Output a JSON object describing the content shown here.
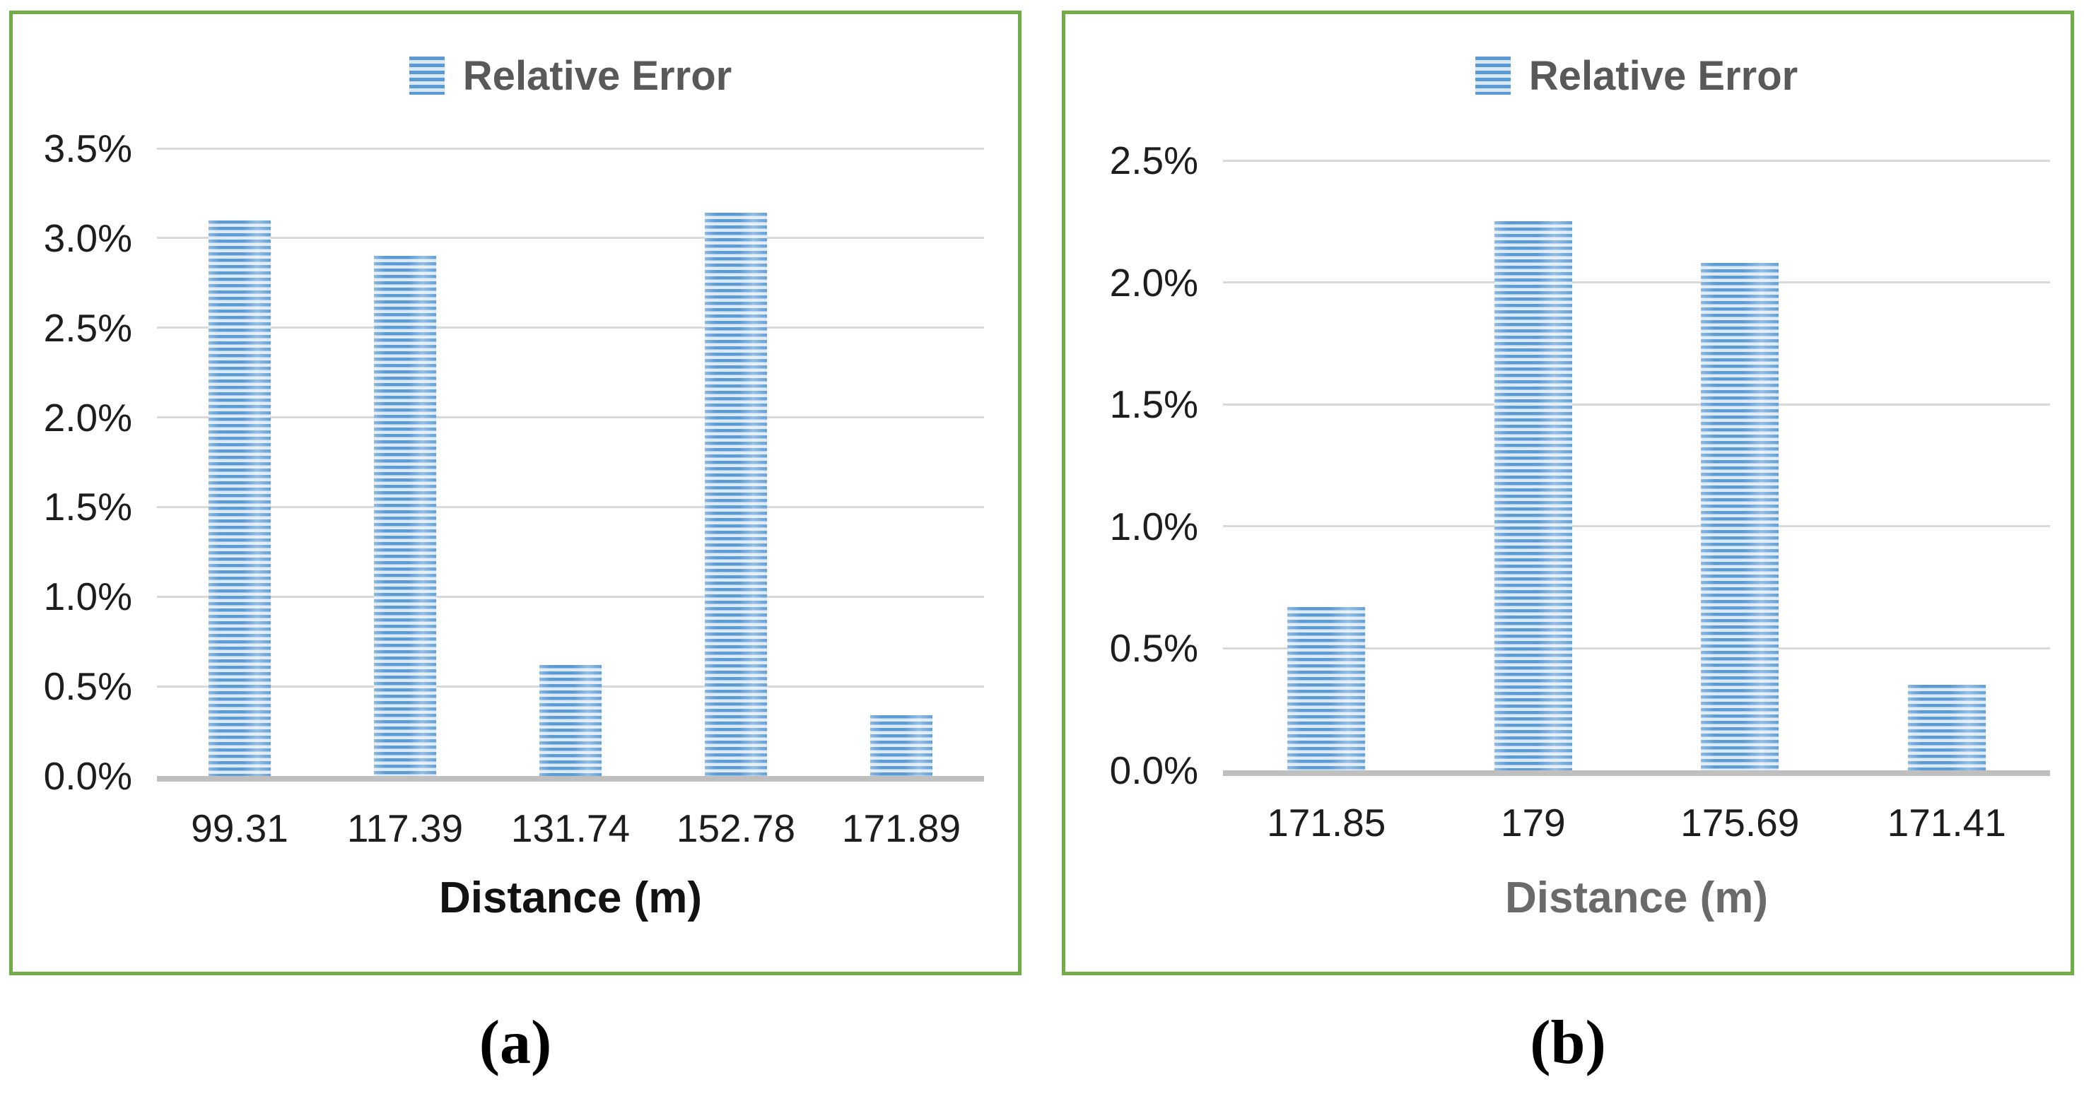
{
  "figure": {
    "caption_a": "(a)",
    "caption_b": "(b)"
  },
  "colors": {
    "panel_border_green": "#70AD47",
    "bar_blue": "#5B9BD5",
    "bar_stripe_light": "#DCE9F6",
    "gridline_gray": "#D9D9D9",
    "baseline_gray": "#BFBFBF",
    "legend_text_gray": "#595959",
    "tick_text_dark": "#1d1d1d"
  },
  "chart_data": [
    {
      "type": "bar",
      "caption": "(a)",
      "legend_label": "Relative Error",
      "categories": [
        "99.31",
        "117.39",
        "131.74",
        "152.78",
        "171.89"
      ],
      "values": [
        3.1,
        2.9,
        0.62,
        3.14,
        0.34
      ],
      "value_unit": "%",
      "xlabel": "Distance (m)",
      "ylabel": "",
      "ylim": [
        0,
        3.5
      ],
      "ytick_step": 0.5,
      "ytick_labels": [
        "0.0%",
        "0.5%",
        "1.0%",
        "1.5%",
        "2.0%",
        "2.5%",
        "3.0%",
        "3.5%"
      ],
      "grid": true,
      "legend_position": "top-center"
    },
    {
      "type": "bar",
      "caption": "(b)",
      "legend_label": "Relative Error",
      "categories": [
        "171.85",
        "179",
        "175.69",
        "171.41"
      ],
      "values": [
        0.67,
        2.25,
        2.08,
        0.35
      ],
      "value_unit": "%",
      "xlabel": "Distance (m)",
      "ylabel": "",
      "ylim": [
        0,
        2.5
      ],
      "ytick_step": 0.5,
      "ytick_labels": [
        "0.0%",
        "0.5%",
        "1.0%",
        "1.5%",
        "2.0%",
        "2.5%"
      ],
      "grid": true,
      "legend_position": "top-center"
    }
  ]
}
